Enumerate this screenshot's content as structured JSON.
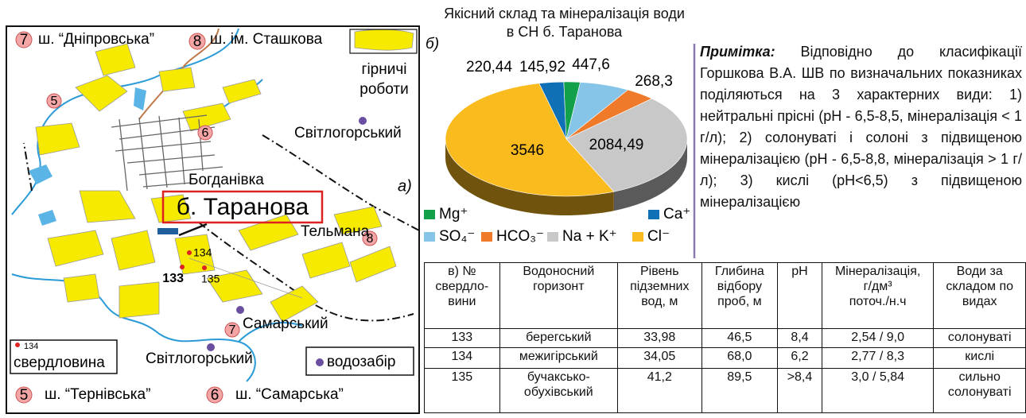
{
  "map": {
    "panel_label": "а)",
    "mines": [
      {
        "number": "7",
        "name": "ш. “Дніпровська”"
      },
      {
        "number": "8",
        "name": "ш. ім. Сташкова"
      },
      {
        "number": "5",
        "name": "ш. “Тернівська”"
      },
      {
        "number": "6",
        "name": "ш. “Самарська”"
      }
    ],
    "mine_markers": [
      "5",
      "6",
      "8",
      "7"
    ],
    "mining_legend": [
      "гірничі",
      "роботи"
    ],
    "places": [
      "Світлогорський",
      "Богданівка",
      "Тельмана",
      "Самарський",
      "Світлогорський"
    ],
    "site": "б. Таранова",
    "wells": [
      "134",
      "133",
      "135"
    ],
    "legend": {
      "well_number": "134",
      "well": "свердловина",
      "intake": "водозабір"
    }
  },
  "chart_data": {
    "type": "pie",
    "panel_label": "б)",
    "title": "Якісний склад та мінералізація води в СН б. Таранова",
    "categories": [
      "Ca⁺",
      "Mg⁺",
      "SO₄⁻",
      "HCO₃⁻",
      "Na + K⁺",
      "Cl⁻"
    ],
    "values": [
      220.44,
      145.92,
      447.6,
      268.3,
      2084.49,
      3546
    ],
    "value_labels": [
      "220,44",
      "145,92",
      "447,6",
      "268,3",
      "2084,49",
      "3546"
    ],
    "colors": [
      "#0f70b5",
      "#13a04a",
      "#86c5e8",
      "#ef7a2a",
      "#c8c8c8",
      "#f9bb1e"
    ],
    "three_d": true
  },
  "note": {
    "label": "Примітка:",
    "text": "Відповідно до класифікації Горшкова В.А. ШВ по визначальних показниках поділяються на 3 характерних види: 1) нейтральні прісні (pH - 6,5-8,5, мінералізація < 1 г/л); 2) солонуваті і солоні з підвищеною мінералізацією (pH - 6,5-8,8, мінералізація > 1 г/л); 3) кислі (pH<6,5) з підвищеною мінералізацією"
  },
  "table": {
    "header": [
      [
        "в) №",
        "свердло-",
        "вини"
      ],
      [
        "Водоносний",
        "горизонт"
      ],
      [
        "Рівень",
        "підземних",
        "вод, м"
      ],
      [
        "Глибина",
        "відбору",
        "проб, м"
      ],
      [
        "pH"
      ],
      [
        "Мінералізація,",
        "г/дм³",
        "поточ./н.ч"
      ],
      [
        "Води за",
        "складом по",
        "видах"
      ]
    ],
    "rows": [
      [
        "133",
        "берегський",
        "33,98",
        "46,5",
        "8,4",
        "2,54 / 9,0",
        "солонуваті"
      ],
      [
        "134",
        "межигірський",
        "34,05",
        "68,0",
        "6,2",
        "2,77 / 8,3",
        "кислі"
      ],
      [
        "135",
        "бучаксько-обухівський",
        "41,2",
        "89,5",
        ">8,4",
        "3,0 / 5,84",
        "сильно солонуваті"
      ]
    ]
  }
}
